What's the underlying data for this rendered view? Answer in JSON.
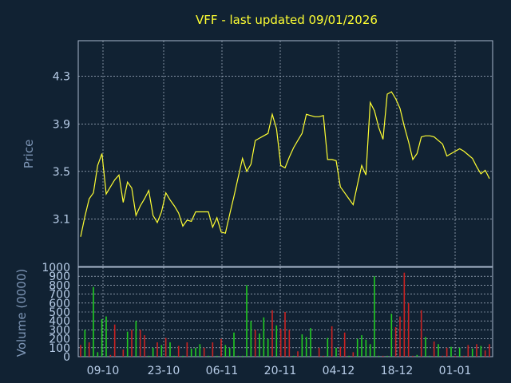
{
  "chart_data": {
    "type": "line",
    "title": "VFF - last updated 09/01/2026",
    "x_tick_labels": [
      "09-10",
      "23-10",
      "06-11",
      "20-11",
      "04-12",
      "18-12",
      "01-01"
    ],
    "colors": {
      "background": "#112233",
      "price_line": "#ffff33",
      "volume_up": "#22cc22",
      "volume_down": "#cc2222"
    },
    "price": {
      "ylabel": "Price",
      "ylim": [
        2.7,
        4.6
      ],
      "ticks": [
        3.1,
        3.5,
        3.9,
        4.3
      ],
      "tick_labels": [
        "3.1",
        "3.5",
        "3.9",
        "4.3"
      ],
      "values": [
        2.95,
        3.12,
        3.27,
        3.32,
        3.55,
        3.65,
        3.31,
        3.37,
        3.43,
        3.47,
        3.24,
        3.41,
        3.36,
        3.13,
        3.21,
        3.27,
        3.34,
        3.13,
        3.07,
        3.16,
        3.32,
        3.26,
        3.21,
        3.15,
        3.04,
        3.09,
        3.08,
        3.16,
        3.16,
        3.16,
        3.16,
        3.03,
        3.11,
        2.99,
        2.98,
        3.14,
        3.29,
        3.45,
        3.61,
        3.5,
        3.56,
        3.76,
        3.78,
        3.8,
        3.82,
        3.98,
        3.86,
        3.55,
        3.53,
        3.62,
        3.7,
        3.76,
        3.82,
        3.98,
        3.97,
        3.96,
        3.96,
        3.97,
        3.6,
        3.6,
        3.59,
        3.37,
        3.32,
        3.27,
        3.22,
        3.39,
        3.55,
        3.47,
        4.08,
        4.01,
        3.87,
        3.77,
        4.15,
        4.17,
        4.11,
        4.03,
        3.88,
        3.75,
        3.6,
        3.65,
        3.79,
        3.8,
        3.8,
        3.79,
        3.76,
        3.73,
        3.63,
        3.65,
        3.67,
        3.69,
        3.67,
        3.64,
        3.61,
        3.54,
        3.48,
        3.51,
        3.44
      ]
    },
    "volume": {
      "ylabel": "Volume (0000)",
      "ylim": [
        0,
        1000
      ],
      "ticks": [
        0,
        100,
        200,
        300,
        400,
        500,
        600,
        700,
        800,
        900,
        1000
      ],
      "tick_labels": [
        "0",
        "100",
        "200",
        "300",
        "400",
        "500",
        "600",
        "700",
        "800",
        "900",
        "1000"
      ],
      "values": [
        130,
        300,
        160,
        780,
        50,
        420,
        450,
        20,
        360,
        0,
        80,
        280,
        300,
        400,
        300,
        240,
        10,
        100,
        160,
        130,
        210,
        160,
        10,
        120,
        10,
        160,
        90,
        100,
        140,
        100,
        10,
        160,
        10,
        200,
        130,
        100,
        270,
        10,
        10,
        800,
        400,
        300,
        260,
        440,
        200,
        520,
        350,
        310,
        500,
        300,
        10,
        60,
        250,
        220,
        320,
        0,
        100,
        10,
        210,
        340,
        100,
        110,
        270,
        10,
        50,
        200,
        240,
        190,
        140,
        900,
        10,
        10,
        10,
        480,
        330,
        450,
        940,
        600,
        10,
        20,
        520,
        220,
        10,
        170,
        140,
        10,
        100,
        110,
        10,
        100,
        10,
        130,
        90,
        140,
        120,
        70,
        140
      ],
      "direction": [
        "down",
        "up",
        "down",
        "up",
        "up",
        "up",
        "up",
        "down",
        "down",
        "up",
        "down",
        "up",
        "down",
        "up",
        "down",
        "down",
        "up",
        "up",
        "down",
        "up",
        "down",
        "up",
        "up",
        "down",
        "up",
        "down",
        "up",
        "up",
        "up",
        "down",
        "up",
        "down",
        "up",
        "down",
        "up",
        "up",
        "up",
        "up",
        "up",
        "up",
        "up",
        "down",
        "up",
        "up",
        "up",
        "down",
        "up",
        "down",
        "down",
        "down",
        "up",
        "down",
        "up",
        "up",
        "up",
        "up",
        "down",
        "down",
        "up",
        "down",
        "up",
        "down",
        "down",
        "up",
        "down",
        "up",
        "up",
        "up",
        "up",
        "up",
        "up",
        "down",
        "up",
        "up",
        "down",
        "down",
        "down",
        "down",
        "down",
        "up",
        "down",
        "up",
        "up",
        "down",
        "up",
        "down",
        "down",
        "up",
        "down",
        "up",
        "down",
        "down",
        "up",
        "down",
        "up",
        "down",
        "down"
      ]
    }
  }
}
